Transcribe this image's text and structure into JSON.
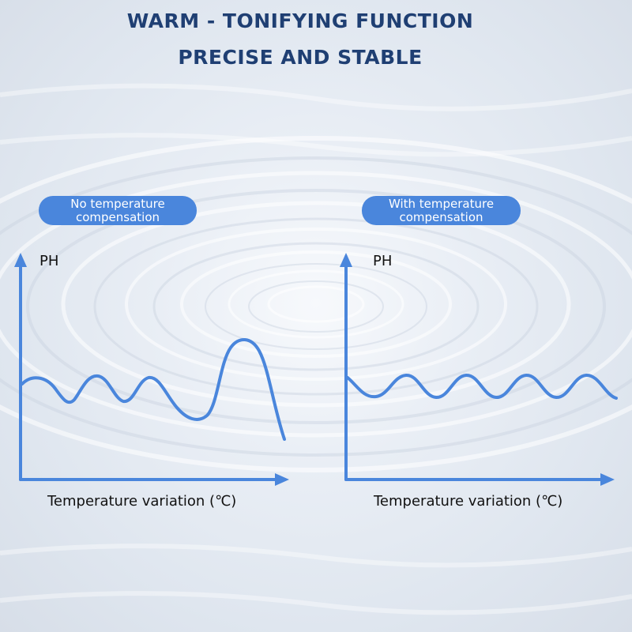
{
  "header": {
    "line1": "WARM - TONIFYING FUNCTION",
    "line2": "PRECISE AND STABLE"
  },
  "colors": {
    "title": "#1f3f73",
    "accent": "#4a86dc",
    "axis": "#4a86dc",
    "curve": "#4a86dc",
    "text": "#111111"
  },
  "panels": [
    {
      "badge": "No temperature compensation",
      "y_axis_label": "PH",
      "x_axis_label": "Temperature variation (℃)"
    },
    {
      "badge": "With temperature compensation",
      "y_axis_label": "PH",
      "x_axis_label": "Temperature variation (℃)"
    }
  ],
  "icons": [
    "y-axis-arrow-icon",
    "x-axis-arrow-icon"
  ]
}
